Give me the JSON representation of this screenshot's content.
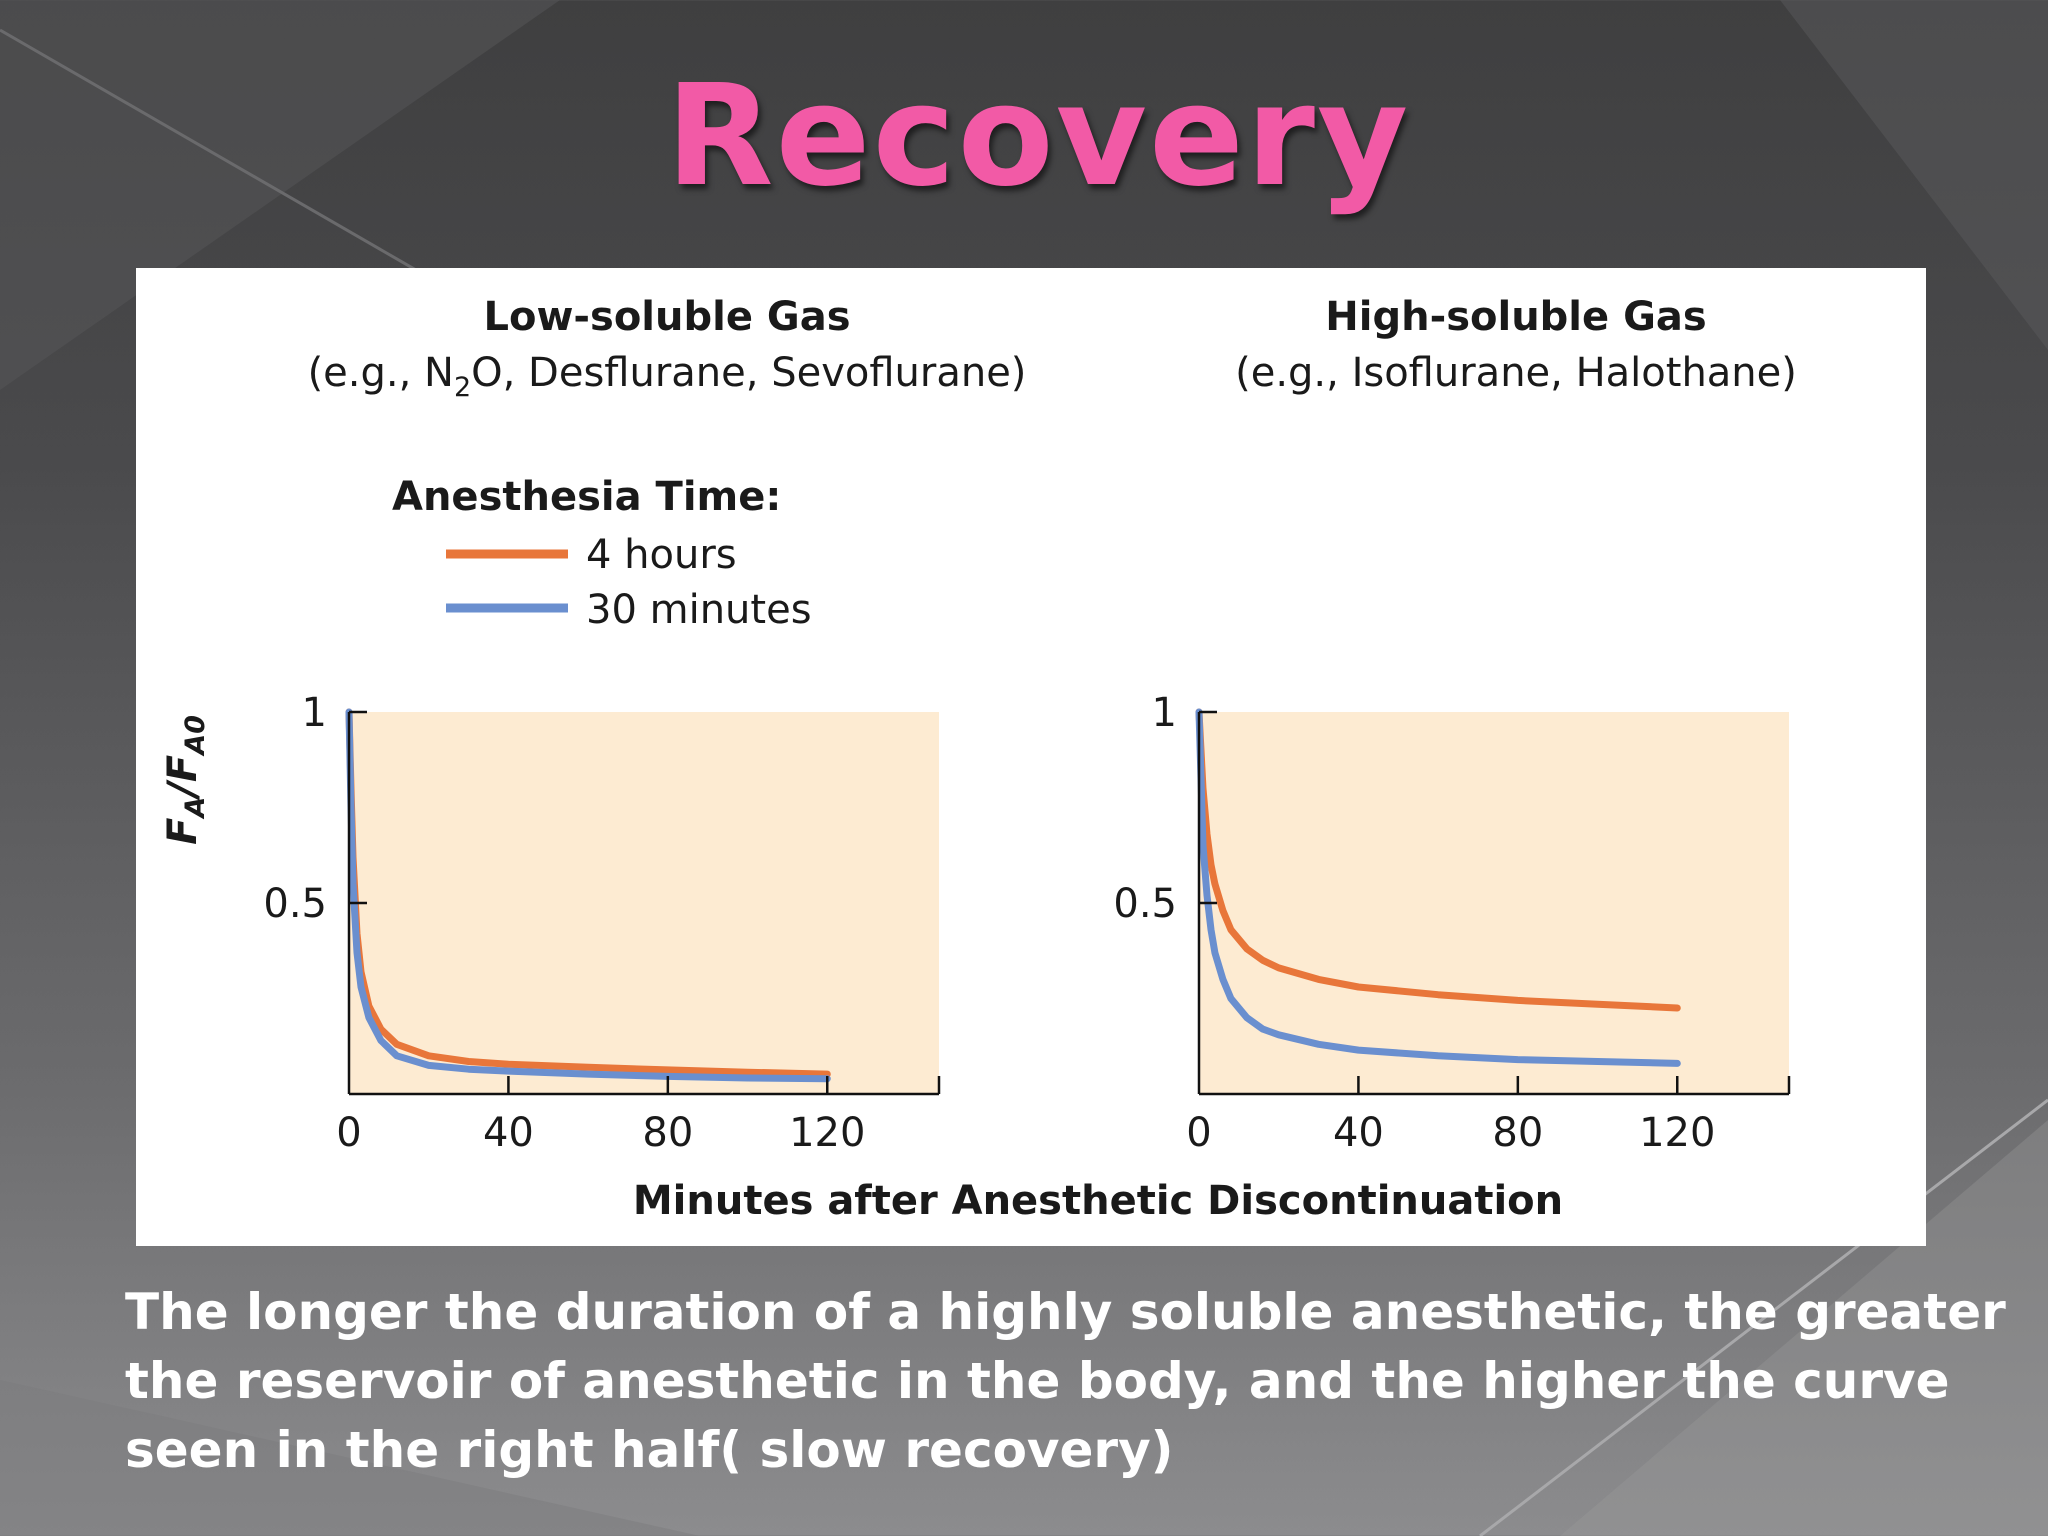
{
  "slide": {
    "title": "Recovery",
    "caption_lines": [
      "The longer the duration of a highly soluble anesthetic, the greater",
      "the reservoir of anesthetic in the body, and the higher the curve",
      "seen in the right half( slow recovery)"
    ]
  },
  "colors": {
    "title": "#f25aa6",
    "plot_bg": "#fdebd2",
    "series_4h": "#e8763a",
    "series_30m": "#6a8fcf"
  },
  "legend": {
    "title": "Anesthesia Time:",
    "items": [
      "4 hours",
      "30 minutes"
    ]
  },
  "y_label": {
    "main": "F",
    "sub1": "A",
    "sep": "/F",
    "sub2": "A0"
  },
  "x_label": "Minutes after Anesthetic Discontinuation",
  "chart_data": [
    {
      "type": "line",
      "title": "Low-soluble Gas",
      "subtitle_parts": [
        "(e.g., N",
        "2",
        "O, Desflurane, Sevoflurane)"
      ],
      "xlim": [
        0,
        138
      ],
      "ylim": [
        0,
        1
      ],
      "x_ticks": [
        0,
        40,
        80,
        120
      ],
      "y_ticks": [
        0.5,
        1
      ],
      "y_tick_labels": [
        "0.5",
        "1"
      ],
      "series": [
        {
          "name": "4 hours",
          "points": [
            [
              0,
              1.0
            ],
            [
              0.5,
              0.8
            ],
            [
              1,
              0.62
            ],
            [
              2,
              0.42
            ],
            [
              3,
              0.32
            ],
            [
              5,
              0.23
            ],
            [
              8,
              0.17
            ],
            [
              12,
              0.13
            ],
            [
              20,
              0.1
            ],
            [
              30,
              0.085
            ],
            [
              40,
              0.078
            ],
            [
              60,
              0.07
            ],
            [
              80,
              0.063
            ],
            [
              100,
              0.057
            ],
            [
              120,
              0.052
            ]
          ]
        },
        {
          "name": "30 minutes",
          "points": [
            [
              0,
              1.0
            ],
            [
              0.5,
              0.75
            ],
            [
              1,
              0.55
            ],
            [
              2,
              0.37
            ],
            [
              3,
              0.28
            ],
            [
              5,
              0.2
            ],
            [
              8,
              0.14
            ],
            [
              12,
              0.1
            ],
            [
              20,
              0.075
            ],
            [
              30,
              0.065
            ],
            [
              40,
              0.06
            ],
            [
              60,
              0.052
            ],
            [
              80,
              0.046
            ],
            [
              100,
              0.042
            ],
            [
              120,
              0.04
            ]
          ]
        }
      ]
    },
    {
      "type": "line",
      "title": "High-soluble Gas",
      "subtitle_parts": [
        "(e.g., Isoflurane, Halothane)"
      ],
      "xlim": [
        0,
        138
      ],
      "ylim": [
        0,
        1
      ],
      "x_ticks": [
        0,
        40,
        80,
        120
      ],
      "y_ticks": [
        0.5,
        1
      ],
      "y_tick_labels": [
        "0.5",
        "1"
      ],
      "series": [
        {
          "name": "4 hours",
          "points": [
            [
              0,
              1.0
            ],
            [
              1,
              0.8
            ],
            [
              2,
              0.68
            ],
            [
              3,
              0.6
            ],
            [
              4,
              0.55
            ],
            [
              6,
              0.48
            ],
            [
              8,
              0.43
            ],
            [
              12,
              0.38
            ],
            [
              16,
              0.35
            ],
            [
              20,
              0.33
            ],
            [
              30,
              0.3
            ],
            [
              40,
              0.28
            ],
            [
              60,
              0.26
            ],
            [
              80,
              0.245
            ],
            [
              100,
              0.235
            ],
            [
              120,
              0.225
            ]
          ]
        },
        {
          "name": "30 minutes",
          "points": [
            [
              0,
              1.0
            ],
            [
              1,
              0.65
            ],
            [
              2,
              0.52
            ],
            [
              3,
              0.43
            ],
            [
              4,
              0.37
            ],
            [
              6,
              0.3
            ],
            [
              8,
              0.25
            ],
            [
              12,
              0.2
            ],
            [
              16,
              0.17
            ],
            [
              20,
              0.155
            ],
            [
              30,
              0.13
            ],
            [
              40,
              0.115
            ],
            [
              60,
              0.1
            ],
            [
              80,
              0.09
            ],
            [
              100,
              0.085
            ],
            [
              120,
              0.08
            ]
          ]
        }
      ]
    }
  ]
}
